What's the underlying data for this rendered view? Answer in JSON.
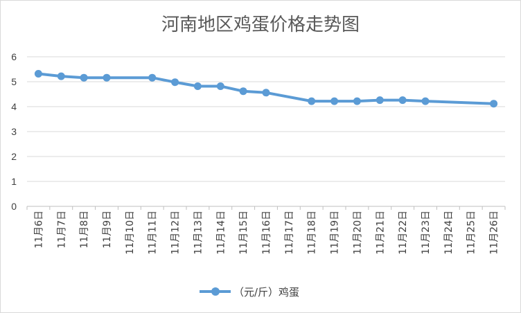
{
  "chart_data": {
    "type": "line",
    "title": "河南地区鸡蛋价格走势图",
    "xlabel": "",
    "ylabel": "",
    "ylim": [
      0,
      6
    ],
    "yticks": [
      "0",
      "1",
      "2",
      "3",
      "4",
      "5",
      "6"
    ],
    "grid": "horizontal",
    "legend_position": "bottom",
    "categories": [
      "11月6日",
      "11月7日",
      "11月8日",
      "11月9日",
      "11月10日",
      "11月11日",
      "11月12日",
      "11月13日",
      "11月14日",
      "11月15日",
      "11月16日",
      "11月17日",
      "11月18日",
      "11月19日",
      "11月20日",
      "11月21日",
      "11月22日",
      "11月23日",
      "11月24日",
      "11月25日",
      "11月26日"
    ],
    "series": [
      {
        "name": "（元/斤）鸡蛋",
        "color": "#5b9bd5",
        "values": [
          5.32,
          5.22,
          5.16,
          5.16,
          null,
          5.16,
          4.98,
          4.82,
          4.82,
          4.62,
          4.56,
          null,
          4.22,
          4.22,
          4.22,
          4.26,
          4.26,
          4.22,
          null,
          null,
          4.12
        ]
      }
    ]
  }
}
